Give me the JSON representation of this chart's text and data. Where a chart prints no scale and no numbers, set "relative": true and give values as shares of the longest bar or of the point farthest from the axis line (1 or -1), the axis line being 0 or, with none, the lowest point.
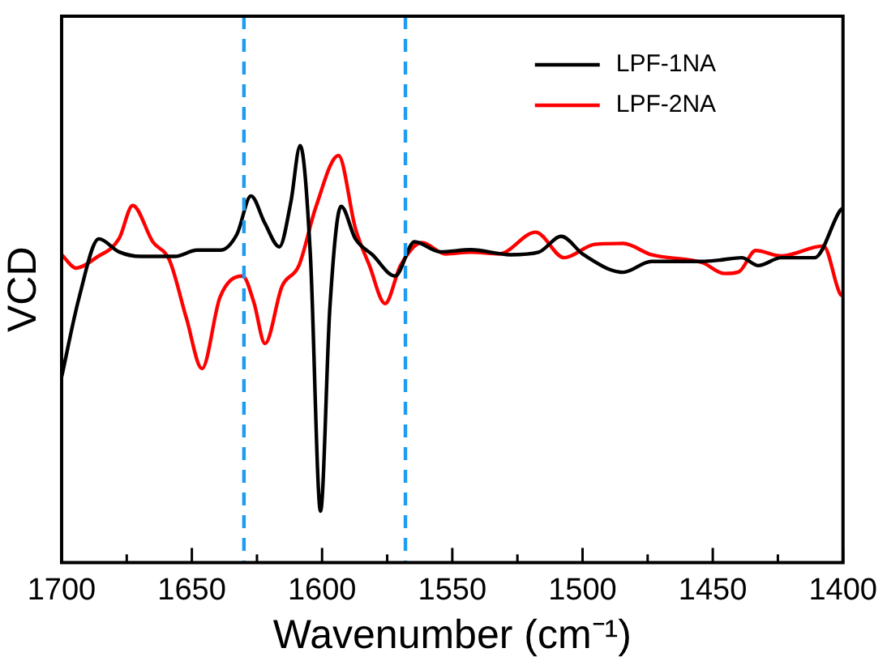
{
  "chart_data": {
    "type": "line",
    "relative": true,
    "xlabel": "Wavenumber (cm⁻¹)",
    "ylabel": "VCD",
    "xlim": [
      1700,
      1400
    ],
    "xticks": [
      1700,
      {
        "value": 1675,
        "label": null
      },
      1650,
      {
        "value": 1625,
        "label": null
      },
      1600,
      {
        "value": 1575,
        "label": null
      },
      1550,
      {
        "value": 1525,
        "label": null
      },
      1500,
      {
        "value": 1475,
        "label": null
      },
      1450,
      {
        "value": 1425,
        "label": null
      },
      1400
    ],
    "tick_labels": "x",
    "legend": "top right",
    "grid": false,
    "marker": "none",
    "line_style": "solid",
    "ref_lines": [
      {
        "axis": "x",
        "value": 1630,
        "label": null,
        "color": "#1e9cf0",
        "line_style": "dashed"
      },
      {
        "axis": "x",
        "value": 1568,
        "label": null,
        "color": "#1e9cf0",
        "line_style": "dashed"
      }
    ],
    "series": [
      {
        "name": "LPF-1NA",
        "color": "#000000",
        "x": [
          1700,
          1693.3,
          1685.7,
          1678,
          1669.5,
          1656.5,
          1648,
          1639,
          1632.7,
          1627.3,
          1622,
          1616.4,
          1612,
          1608.4,
          1604.5,
          1600.6,
          1597,
          1592.7,
          1587.2,
          1580.7,
          1572,
          1564.5,
          1554.7,
          1542.9,
          1527.7,
          1516.9,
          1508.2,
          1499.6,
          1484.4,
          1473.6,
          1454,
          1447.6,
          1438.9,
          1432.5,
          1423.8,
          1410.9,
          1401,
          1400
        ],
        "values": [
          0.445,
          0.635,
          0.776,
          0.745,
          0.734,
          0.734,
          0.749,
          0.749,
          0.787,
          0.879,
          0.814,
          0.757,
          0.864,
          1.0,
          0.738,
          0.123,
          0.612,
          0.854,
          0.776,
          0.738,
          0.687,
          0.769,
          0.745,
          0.75,
          0.738,
          0.744,
          0.782,
          0.738,
          0.696,
          0.722,
          0.722,
          0.725,
          0.731,
          0.712,
          0.731,
          0.731,
          0.845,
          0.85
        ]
      },
      {
        "name": "LPF-2NA",
        "color": "#ff0000",
        "x": [
          1700,
          1694.4,
          1686.8,
          1678,
          1672.7,
          1665,
          1658.6,
          1652.1,
          1646.1,
          1639.2,
          1630.5,
          1626.2,
          1621.9,
          1615.4,
          1608.9,
          1602.4,
          1593.7,
          1587.2,
          1581.8,
          1575.8,
          1569.9,
          1561.7,
          1552.6,
          1542.9,
          1532.1,
          1518,
          1507.1,
          1495.3,
          1484.4,
          1473.6,
          1454,
          1445.5,
          1440,
          1433.5,
          1423.8,
          1407.5,
          1401,
          1400
        ],
        "values": [
          0.738,
          0.706,
          0.731,
          0.776,
          0.856,
          0.769,
          0.725,
          0.586,
          0.465,
          0.636,
          0.687,
          0.624,
          0.525,
          0.662,
          0.712,
          0.852,
          0.976,
          0.801,
          0.712,
          0.621,
          0.712,
          0.767,
          0.74,
          0.744,
          0.74,
          0.792,
          0.731,
          0.763,
          0.765,
          0.738,
          0.719,
          0.693,
          0.697,
          0.748,
          0.735,
          0.759,
          0.643,
          0.64
        ]
      }
    ]
  }
}
